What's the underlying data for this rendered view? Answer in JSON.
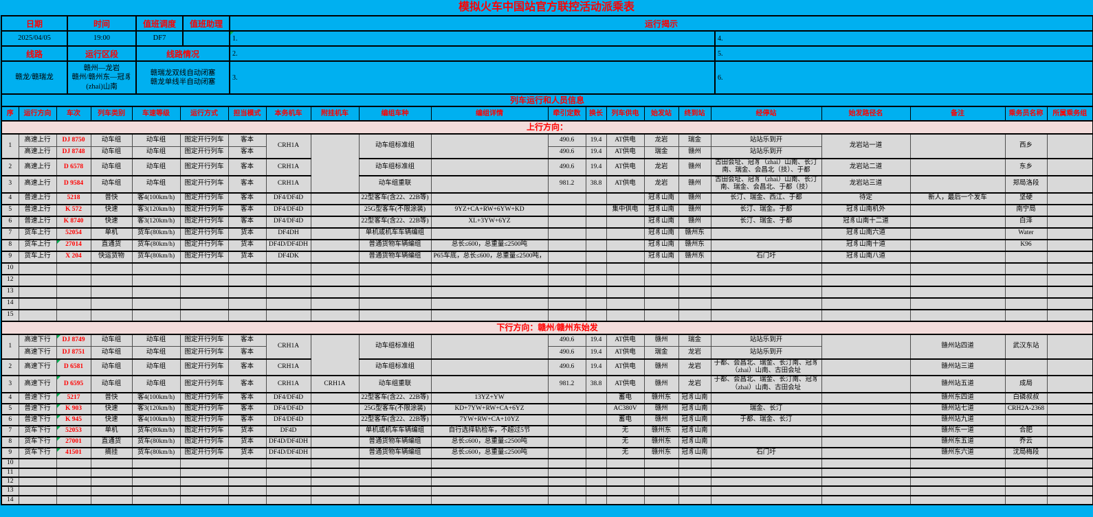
{
  "title": "模拟火车中国站官方联控活动派乘表",
  "colors": {
    "background": "#00B0F0",
    "cell_fill": "#D9D9D9",
    "section_fill": "#F2DCDB",
    "accent_text": "#FF0000",
    "indicator_green": "#00B050",
    "border": "#000000"
  },
  "info": {
    "labels": {
      "date": "日期",
      "time": "时间",
      "duty_dispatcher": "值班调度",
      "duty_assistant": "值班助理",
      "line": "线路",
      "run_section": "运行区段",
      "line_condition": "线路情况",
      "notice": "运行揭示"
    },
    "values": {
      "date": "2025/04/05",
      "time": "19:00",
      "duty_dispatcher": "DF7",
      "duty_assistant": "",
      "line": "赣龙/赣瑞龙",
      "run_section": "赣州—龙岩\n赣州/赣州东—冠豸\n(zhai)山南",
      "line_condition": "赣瑞龙双线自动闭塞\n赣龙单线半自动闭塞"
    },
    "notice_left": [
      "1.",
      "2.",
      "3."
    ],
    "notice_right": [
      "4.",
      "5.",
      "6."
    ]
  },
  "table": {
    "section_title": "列车运行和人员信息",
    "columns": [
      "序",
      "运行方向",
      "车次",
      "列车类别",
      "车速等级",
      "运行方式",
      "担当模式",
      "本务机车",
      "附挂机车",
      "编组车种",
      "编组详情",
      "牵引定数",
      "换长",
      "列车供电",
      "始发站",
      "终到站",
      "经停站",
      "始发路径名",
      "备注",
      "乘务员名称",
      "所属乘务组"
    ],
    "up": {
      "header": "上行方向：",
      "groups": [
        {
          "seq": "1",
          "loco": "CRH1A",
          "attach": "",
          "attach_span": 4,
          "consist_type": "动车组标准组",
          "consist_detail": "",
          "route": "龙岩站一道",
          "note": "",
          "crew": "西乡",
          "crew_group": "",
          "rows": [
            {
              "dir": "高速上行",
              "train": "DJ 8750",
              "green": false,
              "type": "动车组",
              "speed": "动车组",
              "mode": "图定开行列车",
              "duty": "客本",
              "tonnage": "490.6",
              "length": "19.4",
              "power": "AT供电",
              "from": "龙岩",
              "to": "瑞金",
              "stops": "站站乐到开"
            },
            {
              "dir": "高速上行",
              "train": "DJ 8748",
              "green": false,
              "type": "动车组",
              "speed": "动车组",
              "mode": "图定开行列车",
              "duty": "客本",
              "tonnage": "490.6",
              "length": "19.4",
              "power": "AT供电",
              "from": "瑞金",
              "to": "赣州",
              "stops": "站站乐到开"
            }
          ]
        },
        {
          "seq": "2",
          "loco": "CRH1A",
          "attach_skip": true,
          "consist_type": "动车组标准组",
          "consist_detail": "",
          "route": "龙岩站二道",
          "note": "",
          "crew": "东乡",
          "crew_group": "",
          "rows": [
            {
              "dir": "高速上行",
              "train": "D 6578",
              "green": false,
              "type": "动车组",
              "speed": "动车组",
              "mode": "图定开行列车",
              "duty": "客本",
              "tonnage": "490.6",
              "length": "19.4",
              "power": "AT供电",
              "from": "龙岩",
              "to": "赣州",
              "stops": "古田会址、冠豸（zhai）山南、长汀南、瑞金、会昌北（技）、于都"
            }
          ]
        },
        {
          "seq": "3",
          "loco": "CRH1A",
          "attach_skip": true,
          "consist_type": "动车组重联",
          "consist_detail": "",
          "route": "龙岩站三道",
          "note": "",
          "crew": "郑局洛段",
          "crew_group": "",
          "rows": [
            {
              "dir": "高速上行",
              "train": "D 9584",
              "green": false,
              "type": "动车组",
              "speed": "动车组",
              "mode": "图定开行列车",
              "duty": "客本",
              "tonnage": "981.2",
              "length": "38.8",
              "power": "AT供电",
              "from": "龙岩",
              "to": "赣州",
              "stops": "古田会址、冠豸（zhai）山南、长汀南、瑞金、会昌北、于都（技）"
            }
          ]
        },
        {
          "seq": "4",
          "loco": "DF4/DF4D",
          "attach": "",
          "consist_type": "22型客车(含22、22B等)",
          "consist_detail": "",
          "route": "待定",
          "note": "新人，最后一个发车",
          "crew": "坚硬",
          "crew_group": "",
          "rows": [
            {
              "dir": "普速上行",
              "train": "5218",
              "green": false,
              "type": "普快",
              "speed": "客4(100km/h)",
              "mode": "图定开行列车",
              "duty": "客本",
              "tonnage": "",
              "length": "",
              "power": "",
              "from": "冠豸山南",
              "to": "赣州",
              "stops": "长汀、瑞金、西江、于都"
            }
          ]
        },
        {
          "seq": "5",
          "loco": "DF4/DF4D",
          "attach": "",
          "consist_type": "25G型客车(不限涂装)",
          "consist_detail": "9YZ+CA+RW+6YW+KD",
          "route": "冠豸山南机外",
          "note": "",
          "crew": "南宁局",
          "crew_group": "",
          "rows": [
            {
              "dir": "普速上行",
              "train": "K 572",
              "green": false,
              "type": "快速",
              "speed": "客3(120km/h)",
              "mode": "图定开行列车",
              "duty": "客本",
              "tonnage": "",
              "length": "",
              "power": "集中供电",
              "from": "冠豸山南",
              "to": "赣州",
              "stops": "长汀、瑞金。于都"
            }
          ]
        },
        {
          "seq": "6",
          "loco": "DF4/DF4D",
          "attach": "",
          "consist_type": "22型客车(含22、22B等)",
          "consist_detail": "XL+3YW+6YZ",
          "route": "冠豸山南十二道",
          "note": "",
          "crew": "白泽",
          "crew_group": "",
          "rows": [
            {
              "dir": "普速上行",
              "train": "K 8740",
              "green": false,
              "type": "快速",
              "speed": "客3(120km/h)",
              "mode": "图定开行列车",
              "duty": "客本",
              "tonnage": "",
              "length": "",
              "power": "",
              "from": "冠豸山南",
              "to": "赣州",
              "stops": "长汀、瑞金、于都"
            }
          ]
        },
        {
          "seq": "7",
          "loco": "DF4DH",
          "attach": "",
          "consist_type": "单机或机车车辆编组",
          "consist_detail": "",
          "route": "冠豸山南六道",
          "note": "",
          "crew": "Water",
          "crew_group": "",
          "rows": [
            {
              "dir": "货车上行",
              "train": "52054",
              "green": false,
              "type": "单机",
              "speed": "货车(80km/h)",
              "mode": "图定开行列车",
              "duty": "货本",
              "tonnage": "",
              "length": "",
              "power": "",
              "from": "冠豸山南",
              "to": "赣州东",
              "stops": ""
            }
          ]
        },
        {
          "seq": "8",
          "loco": "DF4D/DF4DH",
          "attach": "",
          "consist_type": "普通货物车辆编组",
          "consist_detail": "总长≤600，总重量≤2500吨",
          "route": "冠豸山南十道",
          "note": "",
          "crew": "K96",
          "crew_group": "",
          "rows": [
            {
              "dir": "货车上行",
              "train": "27014",
              "green": true,
              "type": "直通货",
              "speed": "货车(80km/h)",
              "mode": "图定开行列车",
              "duty": "货本",
              "tonnage": "",
              "length": "",
              "power": "",
              "from": "冠豸山南",
              "to": "赣州东",
              "stops": ""
            }
          ]
        },
        {
          "seq": "9",
          "loco": "DF4DK",
          "attach": "",
          "consist_type": "普通货物车辆编组",
          "consist_detail": "P65车底，总长≤600，总重量≤2500吨，",
          "route": "冠豸山南八道",
          "note": "",
          "crew": "",
          "crew_group": "",
          "rows": [
            {
              "dir": "货车上行",
              "train": "X 204",
              "green": false,
              "type": "快运货物",
              "speed": "货车(80km/h)",
              "mode": "图定开行列车",
              "duty": "货本",
              "tonnage": "",
              "length": "",
              "power": "",
              "from": "冠豸山南",
              "to": "赣州东",
              "stops": "石门圩"
            }
          ]
        }
      ],
      "empty_rows": [
        "10",
        "12",
        "13",
        "14",
        "15"
      ]
    },
    "down": {
      "header": "下行方向：赣州/赣州东始发",
      "groups": [
        {
          "seq": "1",
          "loco": "CRH1A",
          "attach": "",
          "attach_span": 3,
          "consist_type": "动车组标准组",
          "consist_detail": "",
          "route": "",
          "note": "赣州站四道",
          "crew": "武汉东站",
          "crew_group": "",
          "rows": [
            {
              "dir": "高速下行",
              "train": "DJ 8749",
              "green": true,
              "type": "动车组",
              "speed": "动车组",
              "mode": "图定开行列车",
              "duty": "客本",
              "tonnage": "490.6",
              "length": "19.4",
              "power": "AT供电",
              "from": "赣州",
              "to": "瑞金",
              "stops": "站站乐到开"
            },
            {
              "dir": "高速下行",
              "train": "DJ 8751",
              "green": false,
              "type": "动车组",
              "speed": "动车组",
              "mode": "图定开行列车",
              "duty": "客本",
              "tonnage": "490.6",
              "length": "19.4",
              "power": "AT供电",
              "from": "瑞金",
              "to": "龙岩",
              "stops": "站站乐到开"
            }
          ]
        },
        {
          "seq": "2",
          "loco": "CRH1A",
          "attach_skip": true,
          "consist_type": "动车组标准组",
          "consist_detail": "",
          "route": "",
          "note": "赣州站三道",
          "crew": "",
          "crew_group": "",
          "rows": [
            {
              "dir": "高速下行",
              "train": "D 6581",
              "green": true,
              "type": "动车组",
              "speed": "动车组",
              "mode": "图定开行列车",
              "duty": "客本",
              "tonnage": "490.6",
              "length": "19.4",
              "power": "AT供电",
              "from": "赣州",
              "to": "龙岩",
              "stops": "于都、会昌北、瑞金、长汀南、冠豸（zhai）山南、古田会址"
            }
          ]
        },
        {
          "seq": "3",
          "loco": "CRH1A",
          "attach": "CRH1A",
          "consist_type": "动车组重联",
          "consist_detail": "",
          "route": "",
          "note": "赣州站五道",
          "crew": "成局",
          "crew_group": "",
          "rows": [
            {
              "dir": "高速下行",
              "train": "D 6595",
              "green": true,
              "type": "动车组",
              "speed": "动车组",
              "mode": "图定开行列车",
              "duty": "客本",
              "tonnage": "981.2",
              "length": "38.8",
              "power": "AT供电",
              "from": "赣州",
              "to": "龙岩",
              "stops": "于都、会昌北、瑞金、长汀南、冠豸（zhai）山南、古田会址"
            }
          ]
        },
        {
          "seq": "4",
          "loco": "DF4/DF4D",
          "attach": "",
          "consist_type": "22型客车(含22、22B等)",
          "consist_detail": "13YZ+YW",
          "route": "",
          "note": "赣州东四道",
          "crew": "白磷叔叔",
          "crew_group": "",
          "rows": [
            {
              "dir": "普速下行",
              "train": "5217",
              "green": true,
              "type": "普快",
              "speed": "客4(100km/h)",
              "mode": "图定开行列车",
              "duty": "客本",
              "tonnage": "",
              "length": "",
              "power": "蓄电",
              "from": "赣州东",
              "to": "冠豸山南",
              "stops": ""
            }
          ]
        },
        {
          "seq": "5",
          "loco": "DF4/DF4D",
          "attach": "",
          "consist_type": "25G型客车(不限涂装)",
          "consist_detail": "KD+7YW+RW+CA+6YZ",
          "route": "",
          "note": "赣州站七道",
          "crew": "CRH2A-2368",
          "crew_group": "",
          "rows": [
            {
              "dir": "普速下行",
              "train": "K 903",
              "green": true,
              "type": "快速",
              "speed": "客3(120km/h)",
              "mode": "图定开行列车",
              "duty": "客本",
              "tonnage": "",
              "length": "",
              "power": "AC380V",
              "from": "赣州",
              "to": "冠豸山南",
              "stops": "瑞金、长汀"
            }
          ]
        },
        {
          "seq": "6",
          "loco": "DF4/DF4D",
          "attach": "",
          "consist_type": "22型客车(含22、22B等)",
          "consist_detail": "7YW+RW+CA+10YZ",
          "route": "",
          "note": "赣州站九道",
          "crew": "",
          "crew_group": "",
          "rows": [
            {
              "dir": "普速下行",
              "train": "K 945",
              "green": true,
              "type": "快速",
              "speed": "客4(100km/h)",
              "mode": "图定开行列车",
              "duty": "客本",
              "tonnage": "",
              "length": "",
              "power": "蓄电",
              "from": "赣州",
              "to": "冠豸山南",
              "stops": "于都、瑞金、长汀"
            }
          ]
        },
        {
          "seq": "7",
          "loco": "DF4D",
          "attach": "",
          "consist_type": "单机或机车车辆编组",
          "consist_detail": "自行选择轨检车，不超过5节",
          "route": "",
          "note": "赣州东一道",
          "crew": "合肥",
          "crew_group": "",
          "rows": [
            {
              "dir": "货车下行",
              "train": "52053",
              "green": true,
              "type": "单机",
              "speed": "货车(80km/h)",
              "mode": "图定开行列车",
              "duty": "货本",
              "tonnage": "",
              "length": "",
              "power": "无",
              "from": "赣州东",
              "to": "冠豸山南",
              "stops": ""
            }
          ]
        },
        {
          "seq": "8",
          "loco": "DF4D/DF4DH",
          "attach": "",
          "consist_type": "普通货物车辆编组",
          "consist_detail": "总长≤600，总重量≤2500吨",
          "route": "",
          "note": "赣州东五道",
          "crew": "乔云",
          "crew_group": "",
          "rows": [
            {
              "dir": "货车下行",
              "train": "27001",
              "green": true,
              "type": "直通货",
              "speed": "货车(80km/h)",
              "mode": "图定开行列车",
              "duty": "货本",
              "tonnage": "",
              "length": "",
              "power": "无",
              "from": "赣州东",
              "to": "冠豸山南",
              "stops": ""
            }
          ]
        },
        {
          "seq": "9",
          "loco": "DF4D/DF4DH",
          "attach": "",
          "consist_type": "普通货物车辆编组",
          "consist_detail": "总长≤600，总重量≤2500吨",
          "route": "",
          "note": "赣州东六道",
          "crew": "沈局梅段",
          "crew_group": "",
          "rows": [
            {
              "dir": "货车下行",
              "train": "41501",
              "green": true,
              "type": "摘挂",
              "speed": "货车(80km/h)",
              "mode": "图定开行列车",
              "duty": "货本",
              "tonnage": "",
              "length": "",
              "power": "无",
              "from": "赣州东",
              "to": "冠豸山南",
              "stops": "石门圩"
            }
          ]
        }
      ],
      "empty_rows": [
        "10",
        "11",
        "12",
        "13",
        "14"
      ]
    }
  }
}
